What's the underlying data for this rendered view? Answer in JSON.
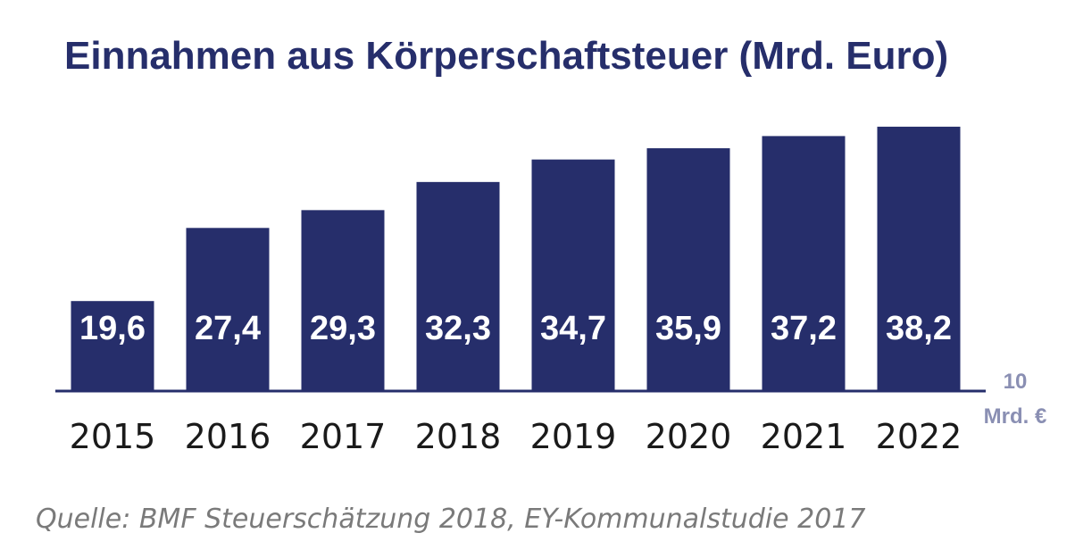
{
  "chart_data": {
    "type": "bar",
    "title": "Einnahmen aus Körperschaftsteuer (Mrd. Euro)",
    "categories": [
      "2015",
      "2016",
      "2017",
      "2018",
      "2019",
      "2020",
      "2021",
      "2022"
    ],
    "values": [
      19.6,
      27.4,
      29.3,
      32.3,
      34.7,
      35.9,
      37.2,
      38.2
    ],
    "value_labels": [
      "19,6",
      "27,4",
      "29,3",
      "32,3",
      "34,7",
      "35,9",
      "37,2",
      "38,2"
    ],
    "xlabel": "",
    "ylabel": "",
    "baseline_value": 10,
    "baseline_label_line1": "10",
    "baseline_label_line2": "Mrd. €",
    "grid": false,
    "legend": "none",
    "colors": {
      "bar": "#262e6b",
      "title": "#262e6b",
      "value_label": "#ffffff",
      "axis_unit": "#8a8fb3",
      "category_label": "#1a1a1a",
      "source": "#7a7a7a"
    }
  },
  "source": "Quelle: BMF Steuerschätzung 2018, EY-Kommunalstudie 2017"
}
